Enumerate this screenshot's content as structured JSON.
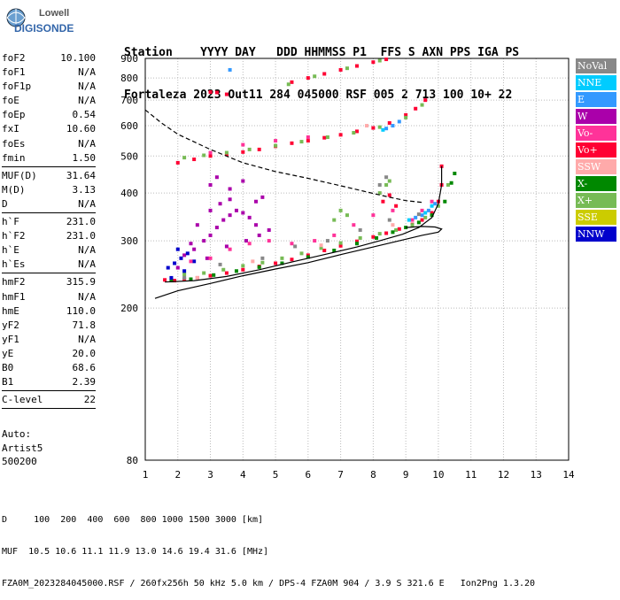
{
  "logo": {
    "line1": "Lowell",
    "line2": "DIGISONDE",
    "icon": "digisonde-logo-icon"
  },
  "header": {
    "labels": "Station    YYYY DAY   DDD HHMMSS P1  FFS S AXN PPS IGA PS",
    "values": "Fortaleza 2023 Out11 284 045000 RSF 005 2 713 100 10+ 22"
  },
  "params": {
    "group1": [
      {
        "name": "foF2",
        "value": "10.100"
      },
      {
        "name": "foF1",
        "value": "N/A"
      },
      {
        "name": "foF1p",
        "value": "N/A"
      },
      {
        "name": "foE",
        "value": "N/A"
      },
      {
        "name": "foEp",
        "value": "0.54"
      },
      {
        "name": "fxI",
        "value": "10.60"
      },
      {
        "name": "foEs",
        "value": "N/A"
      },
      {
        "name": "fmin",
        "value": "1.50"
      }
    ],
    "group2": [
      {
        "name": "MUF(D)",
        "value": "31.64"
      },
      {
        "name": "M(D)",
        "value": "3.13"
      },
      {
        "name": "D",
        "value": "N/A"
      }
    ],
    "group3": [
      {
        "name": "h`F",
        "value": "231.0"
      },
      {
        "name": "h`F2",
        "value": "231.0"
      },
      {
        "name": "h`E",
        "value": "N/A"
      },
      {
        "name": "h`Es",
        "value": "N/A"
      }
    ],
    "group4": [
      {
        "name": "hmF2",
        "value": "315.9"
      },
      {
        "name": "hmF1",
        "value": "N/A"
      },
      {
        "name": "hmE",
        "value": "110.0"
      },
      {
        "name": "yF2",
        "value": "71.8"
      },
      {
        "name": "yF1",
        "value": "N/A"
      },
      {
        "name": "yE",
        "value": "20.0"
      },
      {
        "name": "B0",
        "value": "68.6"
      },
      {
        "name": "B1",
        "value": "2.39"
      }
    ],
    "group5": [
      {
        "name": "C-level",
        "value": "22"
      }
    ]
  },
  "auto": {
    "line1": "Auto:",
    "line2": "Artist5",
    "line3": "500200"
  },
  "legend": [
    {
      "label": "NoVal",
      "color": "#888888"
    },
    {
      "label": "NNE",
      "color": "#00ccff"
    },
    {
      "label": "E",
      "color": "#3399ff"
    },
    {
      "label": "W",
      "color": "#aa00aa"
    },
    {
      "label": "Vo-",
      "color": "#ff3399"
    },
    {
      "label": "Vo+",
      "color": "#ff0033"
    },
    {
      "label": "SSW",
      "color": "#ffaaaa"
    },
    {
      "label": "X-",
      "color": "#008800"
    },
    {
      "label": "X+",
      "color": "#77bb55"
    },
    {
      "label": "SSE",
      "color": "#cccc00"
    },
    {
      "label": "NNW",
      "color": "#0000cc"
    }
  ],
  "footer": {
    "line1": "D     100  200  400  600  800 1000 1500 3000 [km]",
    "line2": "MUF  10.5 10.6 11.1 11.9 13.0 14.6 19.4 31.6 [MHz]",
    "line3": "FZA0M_2023284045000.RSF / 260fx256h 50 kHz 5.0 km / DPS-4 FZA0M 904 / 3.9 S 321.6 E   Ion2Png 1.3.20"
  },
  "chart_data": {
    "type": "scatter",
    "title": "",
    "xlabel": "",
    "ylabel": "",
    "xlim": [
      1,
      14
    ],
    "ylim": [
      80,
      900
    ],
    "y_scale": "log",
    "x_ticks": [
      1,
      2,
      3,
      4,
      5,
      6,
      7,
      8,
      9,
      10,
      11,
      12,
      13,
      14
    ],
    "y_ticks": [
      80,
      200,
      300,
      400,
      500,
      600,
      700,
      800,
      900
    ],
    "grid": true,
    "series": [
      {
        "name": "Vo+",
        "color": "#ff0033",
        "points": [
          [
            1.6,
            237
          ],
          [
            1.9,
            236
          ],
          [
            2.2,
            238
          ],
          [
            2.6,
            240
          ],
          [
            3.0,
            243
          ],
          [
            3.5,
            247
          ],
          [
            4.0,
            252
          ],
          [
            4.5,
            257
          ],
          [
            5.0,
            262
          ],
          [
            5.5,
            268
          ],
          [
            6.0,
            275
          ],
          [
            6.5,
            283
          ],
          [
            7.0,
            291
          ],
          [
            7.5,
            299
          ],
          [
            8.0,
            307
          ],
          [
            8.4,
            314
          ],
          [
            8.8,
            322
          ],
          [
            9.2,
            331
          ],
          [
            9.5,
            340
          ],
          [
            9.8,
            355
          ],
          [
            10.0,
            380
          ],
          [
            10.1,
            420
          ],
          [
            10.1,
            470
          ],
          [
            8.3,
            380
          ],
          [
            8.5,
            395
          ],
          [
            8.7,
            370
          ],
          [
            2.0,
            480
          ],
          [
            2.5,
            490
          ],
          [
            3.0,
            500
          ],
          [
            3.5,
            505
          ],
          [
            4.0,
            512
          ],
          [
            4.5,
            520
          ],
          [
            5.0,
            530
          ],
          [
            5.5,
            540
          ],
          [
            6.0,
            548
          ],
          [
            6.5,
            558
          ],
          [
            7.0,
            568
          ],
          [
            7.5,
            580
          ],
          [
            8.0,
            592
          ],
          [
            8.5,
            610
          ],
          [
            9.0,
            640
          ],
          [
            9.3,
            665
          ],
          [
            9.6,
            700
          ],
          [
            3.0,
            735
          ],
          [
            3.2,
            733
          ],
          [
            3.5,
            725
          ],
          [
            5.5,
            780
          ],
          [
            6.0,
            800
          ],
          [
            6.5,
            820
          ],
          [
            7.0,
            840
          ],
          [
            7.5,
            860
          ],
          [
            8.0,
            880
          ],
          [
            8.4,
            895
          ]
        ]
      },
      {
        "name": "X+",
        "color": "#77bb55",
        "points": [
          [
            2.2,
            245
          ],
          [
            2.8,
            247
          ],
          [
            3.4,
            252
          ],
          [
            4.0,
            258
          ],
          [
            4.6,
            263
          ],
          [
            5.2,
            270
          ],
          [
            5.8,
            278
          ],
          [
            6.4,
            287
          ],
          [
            7.0,
            296
          ],
          [
            7.6,
            305
          ],
          [
            8.2,
            313
          ],
          [
            8.7,
            320
          ],
          [
            9.2,
            330
          ],
          [
            9.6,
            345
          ],
          [
            10.0,
            370
          ],
          [
            10.3,
            420
          ],
          [
            8.2,
            400
          ],
          [
            8.4,
            420
          ],
          [
            8.5,
            430
          ],
          [
            6.8,
            340
          ],
          [
            7.0,
            360
          ],
          [
            7.2,
            350
          ],
          [
            2.2,
            495
          ],
          [
            2.8,
            502
          ],
          [
            3.5,
            510
          ],
          [
            4.2,
            520
          ],
          [
            5.0,
            532
          ],
          [
            5.8,
            545
          ],
          [
            6.6,
            560
          ],
          [
            7.4,
            575
          ],
          [
            8.2,
            595
          ],
          [
            9.0,
            630
          ],
          [
            9.5,
            680
          ],
          [
            5.4,
            770
          ],
          [
            6.2,
            808
          ],
          [
            7.2,
            848
          ],
          [
            8.2,
            888
          ]
        ]
      },
      {
        "name": "X-",
        "color": "#008800",
        "points": [
          [
            1.8,
            236
          ],
          [
            2.4,
            238
          ],
          [
            3.1,
            244
          ],
          [
            3.8,
            250
          ],
          [
            4.5,
            256
          ],
          [
            5.2,
            262
          ],
          [
            6.0,
            272
          ],
          [
            6.8,
            283
          ],
          [
            7.5,
            295
          ],
          [
            8.1,
            305
          ],
          [
            8.6,
            316
          ],
          [
            9.0,
            325
          ],
          [
            9.4,
            335
          ],
          [
            9.8,
            350
          ],
          [
            10.2,
            380
          ],
          [
            10.4,
            425
          ],
          [
            10.5,
            450
          ]
        ]
      },
      {
        "name": "W",
        "color": "#aa00aa",
        "points": [
          [
            2.2,
            275
          ],
          [
            2.5,
            285
          ],
          [
            2.8,
            300
          ],
          [
            3.0,
            310
          ],
          [
            3.2,
            325
          ],
          [
            3.4,
            340
          ],
          [
            3.6,
            350
          ],
          [
            3.8,
            360
          ],
          [
            4.0,
            355
          ],
          [
            4.2,
            345
          ],
          [
            4.4,
            330
          ],
          [
            2.6,
            330
          ],
          [
            3.0,
            360
          ],
          [
            3.3,
            375
          ],
          [
            3.6,
            385
          ],
          [
            2.4,
            295
          ],
          [
            2.9,
            270
          ],
          [
            3.5,
            290
          ],
          [
            4.1,
            300
          ],
          [
            4.5,
            310
          ],
          [
            4.8,
            320
          ],
          [
            2.0,
            255
          ],
          [
            4.4,
            380
          ],
          [
            4.6,
            390
          ],
          [
            3.0,
            420
          ],
          [
            3.2,
            440
          ],
          [
            3.6,
            410
          ],
          [
            4.0,
            430
          ]
        ]
      },
      {
        "name": "NNW",
        "color": "#0000cc",
        "points": [
          [
            1.7,
            255
          ],
          [
            1.9,
            262
          ],
          [
            2.1,
            270
          ],
          [
            2.3,
            278
          ],
          [
            2.0,
            285
          ],
          [
            1.8,
            240
          ],
          [
            2.2,
            250
          ],
          [
            2.5,
            265
          ]
        ]
      },
      {
        "name": "Vo-",
        "color": "#ff3399",
        "points": [
          [
            2.4,
            265
          ],
          [
            3.0,
            270
          ],
          [
            3.6,
            285
          ],
          [
            4.2,
            295
          ],
          [
            4.8,
            300
          ],
          [
            5.5,
            295
          ],
          [
            6.2,
            300
          ],
          [
            6.8,
            310
          ],
          [
            7.4,
            330
          ],
          [
            8.0,
            350
          ],
          [
            8.6,
            360
          ],
          [
            9.2,
            340
          ],
          [
            9.5,
            360
          ],
          [
            9.8,
            380
          ],
          [
            3.0,
            510
          ],
          [
            4.0,
            535
          ],
          [
            5.0,
            548
          ],
          [
            6.0,
            560
          ]
        ]
      },
      {
        "name": "E",
        "color": "#3399ff",
        "points": [
          [
            9.3,
            345
          ],
          [
            9.5,
            350
          ],
          [
            9.7,
            360
          ],
          [
            9.9,
            375
          ],
          [
            8.4,
            590
          ],
          [
            8.6,
            600
          ],
          [
            8.8,
            615
          ],
          [
            3.6,
            840
          ]
        ]
      },
      {
        "name": "NNE",
        "color": "#00ccff",
        "points": [
          [
            9.1,
            340
          ],
          [
            9.6,
            355
          ],
          [
            9.8,
            370
          ],
          [
            8.3,
            585
          ]
        ]
      },
      {
        "name": "NoVal",
        "color": "#888888",
        "points": [
          [
            2.2,
            240
          ],
          [
            3.3,
            260
          ],
          [
            4.6,
            270
          ],
          [
            5.6,
            290
          ],
          [
            6.6,
            300
          ],
          [
            7.6,
            320
          ],
          [
            8.5,
            340
          ],
          [
            9.4,
            352
          ],
          [
            8.2,
            420
          ],
          [
            8.4,
            440
          ]
        ]
      },
      {
        "name": "SSW",
        "color": "#ffaaaa",
        "points": [
          [
            2.6,
            240
          ],
          [
            4.3,
            265
          ],
          [
            6.4,
            292
          ],
          [
            8.6,
            330
          ],
          [
            7.8,
            600
          ]
        ]
      }
    ],
    "lines": [
      {
        "name": "profile",
        "style": "solid",
        "points": [
          [
            1.3,
            212
          ],
          [
            2.0,
            222
          ],
          [
            3.0,
            232
          ],
          [
            4.0,
            243
          ],
          [
            5.0,
            253
          ],
          [
            6.0,
            263
          ],
          [
            7.0,
            276
          ],
          [
            8.0,
            289
          ],
          [
            8.8,
            300
          ],
          [
            9.5,
            310
          ],
          [
            10.0,
            316
          ],
          [
            10.1,
            322
          ],
          [
            9.9,
            326
          ],
          [
            9.5,
            327
          ],
          [
            9.0,
            325
          ]
        ]
      },
      {
        "name": "trace",
        "style": "solid",
        "points": [
          [
            1.6,
            234
          ],
          [
            2.5,
            236
          ],
          [
            3.5,
            242
          ],
          [
            4.5,
            252
          ],
          [
            5.5,
            264
          ],
          [
            6.5,
            276
          ],
          [
            7.5,
            289
          ],
          [
            8.2,
            300
          ],
          [
            8.9,
            312
          ],
          [
            9.4,
            325
          ],
          [
            9.8,
            345
          ],
          [
            10.0,
            375
          ],
          [
            10.1,
            420
          ],
          [
            10.1,
            470
          ]
        ]
      },
      {
        "name": "muf",
        "style": "dashed",
        "points": [
          [
            1.0,
            660
          ],
          [
            1.5,
            610
          ],
          [
            2.0,
            570
          ],
          [
            3.0,
            520
          ],
          [
            4.0,
            480
          ],
          [
            5.0,
            455
          ],
          [
            6.0,
            437
          ],
          [
            7.0,
            418
          ],
          [
            8.0,
            399
          ],
          [
            8.5,
            390
          ],
          [
            9.0,
            382
          ],
          [
            9.5,
            378
          ]
        ]
      }
    ]
  }
}
